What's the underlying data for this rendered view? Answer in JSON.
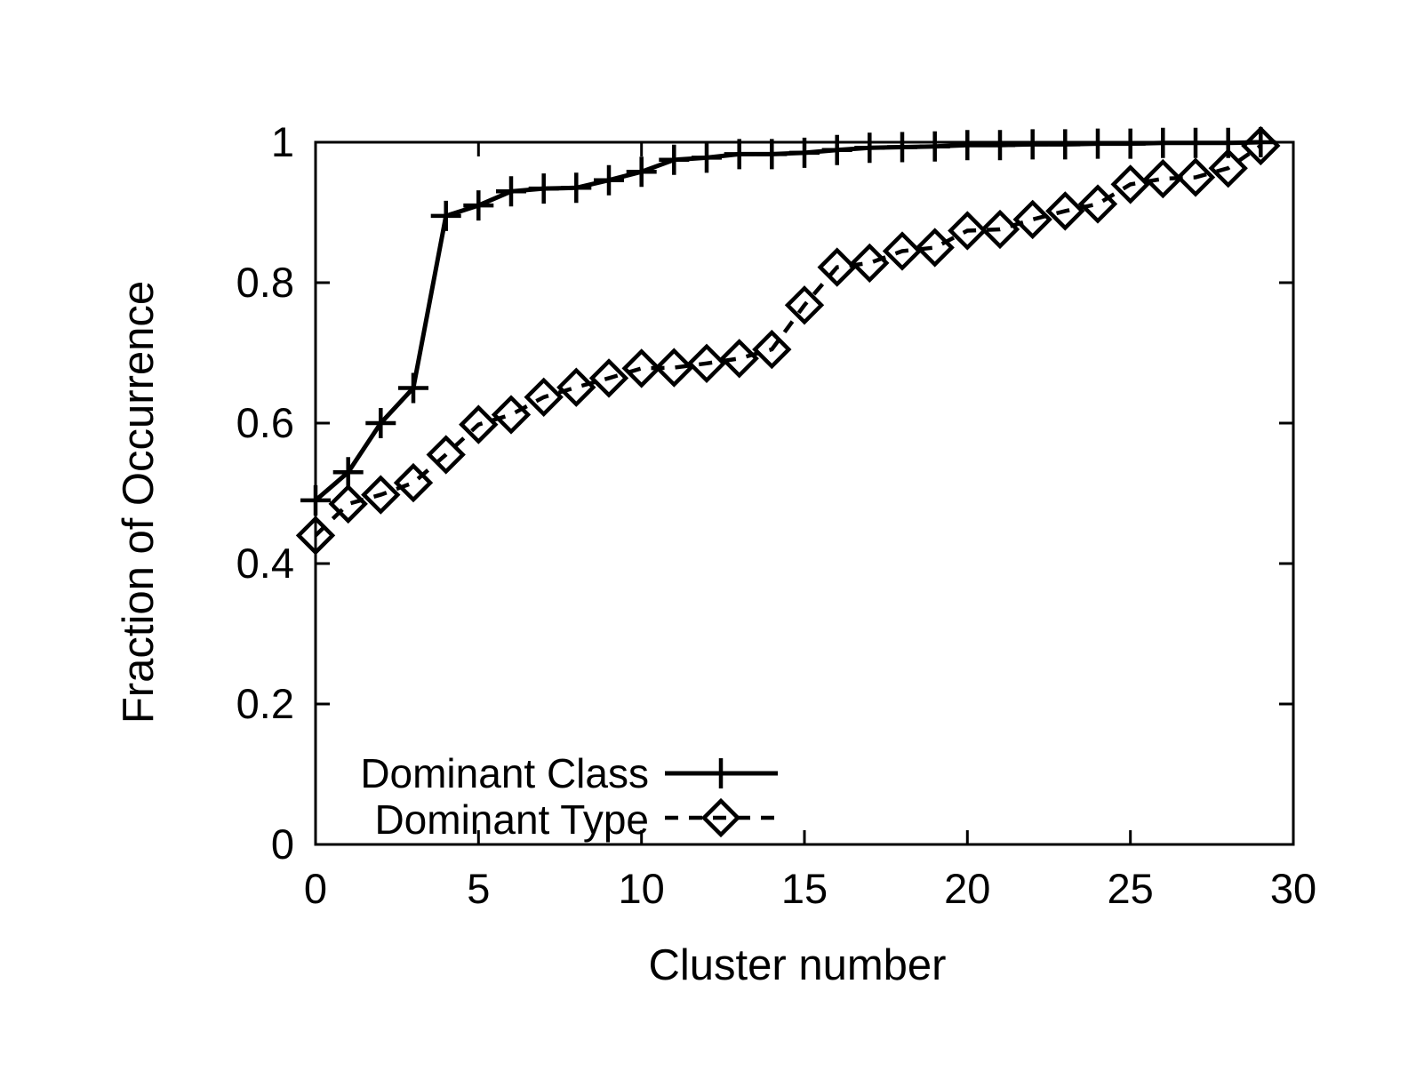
{
  "figure": {
    "background": "#ffffff",
    "ink_color": "#000000"
  },
  "chart_data": {
    "type": "line",
    "title": "",
    "xlabel": "Cluster number",
    "ylabel": "Fraction of Occurrence",
    "xlim": [
      0,
      30
    ],
    "ylim": [
      0,
      1
    ],
    "grid": false,
    "legend_position": "inside bottom-left",
    "x_tick_values": [
      0,
      5,
      10,
      15,
      20,
      25,
      30
    ],
    "x_tick_labels": [
      "0",
      "5",
      "10",
      "15",
      "20",
      "25",
      "30"
    ],
    "y_tick_values": [
      0,
      0.2,
      0.4,
      0.6,
      0.8,
      1
    ],
    "y_tick_labels": [
      "0",
      "0.2",
      "0.4",
      "0.6",
      "0.8",
      "1"
    ],
    "x": [
      0,
      1,
      2,
      3,
      4,
      5,
      6,
      7,
      8,
      9,
      10,
      11,
      12,
      13,
      14,
      15,
      16,
      17,
      18,
      19,
      20,
      21,
      22,
      23,
      24,
      25,
      26,
      27,
      28,
      29
    ],
    "series": [
      {
        "name": "Dominant Class",
        "marker": "plus",
        "line_style": "solid",
        "values": [
          0.49,
          0.53,
          0.6,
          0.65,
          0.895,
          0.91,
          0.93,
          0.934,
          0.935,
          0.946,
          0.958,
          0.975,
          0.978,
          0.983,
          0.983,
          0.985,
          0.989,
          0.992,
          0.993,
          0.994,
          0.996,
          0.996,
          0.997,
          0.997,
          0.998,
          0.998,
          0.999,
          0.999,
          0.999,
          1.0
        ]
      },
      {
        "name": "Dominant Type",
        "marker": "diamond",
        "line_style": "dashed",
        "values": [
          0.44,
          0.485,
          0.498,
          0.515,
          0.555,
          0.598,
          0.612,
          0.637,
          0.651,
          0.664,
          0.678,
          0.679,
          0.685,
          0.692,
          0.705,
          0.768,
          0.822,
          0.828,
          0.845,
          0.85,
          0.874,
          0.876,
          0.89,
          0.902,
          0.912,
          0.94,
          0.948,
          0.95,
          0.963,
          0.995
        ]
      }
    ]
  }
}
